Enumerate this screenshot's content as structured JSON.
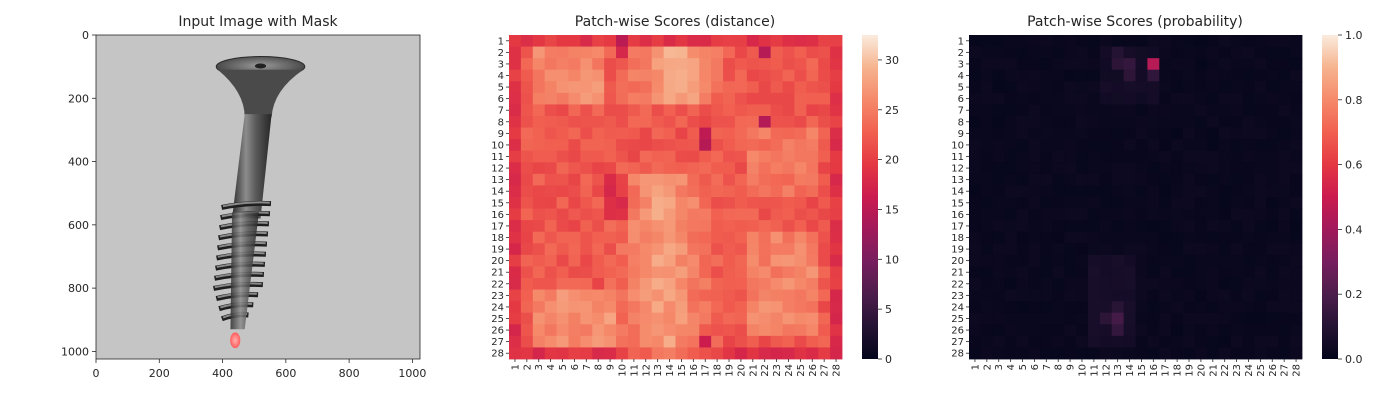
{
  "figure": {
    "type": "heatmap"
  },
  "chart_data": [
    {
      "type": "image",
      "title": "Input Image with Mask",
      "xlim": [
        0,
        1024
      ],
      "ylim": [
        1024,
        0
      ],
      "x_ticks": [
        "0",
        "200",
        "400",
        "600",
        "800",
        "1000"
      ],
      "y_ticks": [
        "0",
        "200",
        "400",
        "600",
        "800",
        "1000"
      ],
      "image_content": "screw",
      "mask": {
        "color": "#ff6f6f",
        "center": [
          440,
          965
        ],
        "radius": 25
      },
      "colors": {
        "background": "#c8c8c8",
        "screw_dark": "#3c3c3c",
        "screw_light": "#8a8a8a"
      }
    },
    {
      "type": "heatmap",
      "title": "Patch-wise Scores (distance)",
      "rows": [
        "1",
        "2",
        "3",
        "4",
        "5",
        "6",
        "7",
        "8",
        "9",
        "10",
        "11",
        "12",
        "13",
        "14",
        "15",
        "16",
        "17",
        "18",
        "19",
        "20",
        "21",
        "22",
        "23",
        "24",
        "25",
        "26",
        "27",
        "28"
      ],
      "cols": [
        "1",
        "2",
        "3",
        "4",
        "5",
        "6",
        "7",
        "8",
        "9",
        "10",
        "11",
        "12",
        "13",
        "14",
        "15",
        "16",
        "17",
        "18",
        "19",
        "20",
        "21",
        "22",
        "23",
        "24",
        "25",
        "26",
        "27",
        "28"
      ],
      "colorbar": {
        "min": 0,
        "max": 32.5,
        "ticks": [
          0,
          5,
          10,
          15,
          20,
          25,
          30
        ]
      },
      "colormap": "rocket",
      "approx_range": [
        13,
        32.5
      ]
    },
    {
      "type": "heatmap",
      "title": "Patch-wise Scores (probability)",
      "rows": [
        "1",
        "2",
        "3",
        "4",
        "5",
        "6",
        "7",
        "8",
        "9",
        "10",
        "11",
        "12",
        "13",
        "14",
        "15",
        "16",
        "17",
        "18",
        "19",
        "20",
        "21",
        "22",
        "23",
        "24",
        "25",
        "26",
        "27",
        "28"
      ],
      "cols": [
        "1",
        "2",
        "3",
        "4",
        "5",
        "6",
        "7",
        "8",
        "9",
        "10",
        "11",
        "12",
        "13",
        "14",
        "15",
        "16",
        "17",
        "18",
        "19",
        "20",
        "21",
        "22",
        "23",
        "24",
        "25",
        "26",
        "27",
        "28"
      ],
      "colorbar": {
        "min": 0.0,
        "max": 1.0,
        "ticks": [
          0.0,
          0.2,
          0.4,
          0.6,
          0.8,
          1.0
        ],
        "tick_labels": [
          "0.0",
          "0.2",
          "0.4",
          "0.6",
          "0.8",
          "1.0"
        ]
      },
      "colormap": "rocket",
      "hotspots": [
        {
          "row": 3,
          "col": 16,
          "value": 0.45
        },
        {
          "row": 3,
          "col": 13,
          "value": 0.12
        },
        {
          "row": 3,
          "col": 14,
          "value": 0.14
        },
        {
          "row": 4,
          "col": 14,
          "value": 0.12
        },
        {
          "row": 4,
          "col": 16,
          "value": 0.13
        },
        {
          "row": 2,
          "col": 13,
          "value": 0.1
        },
        {
          "row": 25,
          "col": 13,
          "value": 0.18
        },
        {
          "row": 25,
          "col": 12,
          "value": 0.12
        },
        {
          "row": 24,
          "col": 13,
          "value": 0.11
        },
        {
          "row": 26,
          "col": 13,
          "value": 0.14
        }
      ]
    }
  ]
}
